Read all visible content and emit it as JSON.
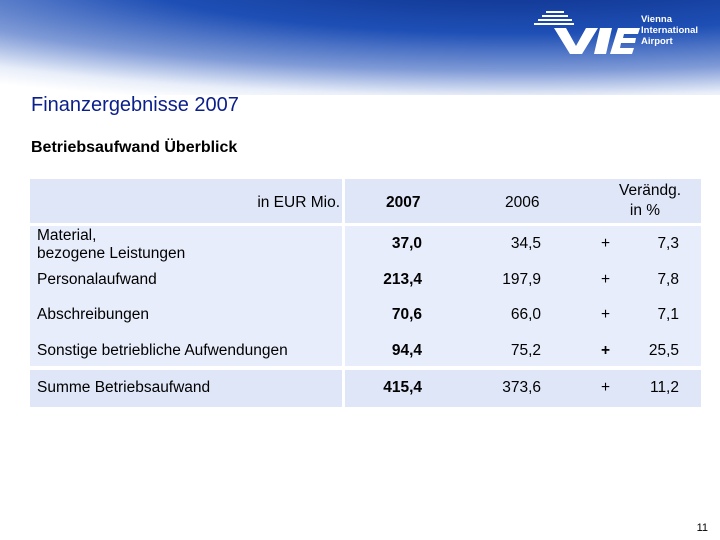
{
  "header": {
    "logo_line1": "Vienna",
    "logo_line2": "International",
    "logo_line3": "Airport"
  },
  "title": "Finanzergebnisse 2007",
  "subtitle": "Betriebsaufwand Überblick",
  "table": {
    "unit_header": "in EUR Mio.",
    "col_2007": "2007",
    "col_2006": "2006",
    "col_change_line1": "Verändg.",
    "col_change_line2": "in %",
    "rows": [
      {
        "label_line1": "Material,",
        "label_line2": "bezogene Leistungen",
        "v2007": "37,0",
        "v2006": "34,5",
        "sign": "+",
        "change": "7,3"
      },
      {
        "label": "Personalaufwand",
        "v2007": "213,4",
        "v2006": "197,9",
        "sign": "+",
        "change": "7,8"
      },
      {
        "label": "Abschreibungen",
        "v2007": "70,6",
        "v2006": "66,0",
        "sign": "+",
        "change": "7,1"
      },
      {
        "label": "Sonstige betriebliche Aufwendungen",
        "v2007": "94,4",
        "v2006": "75,2",
        "sign": "+",
        "change": "25,5"
      }
    ],
    "total": {
      "label": "Summe Betriebsaufwand",
      "v2007": "415,4",
      "v2006": "373,6",
      "sign": "+",
      "change": "11,2"
    }
  },
  "page_number": "11"
}
